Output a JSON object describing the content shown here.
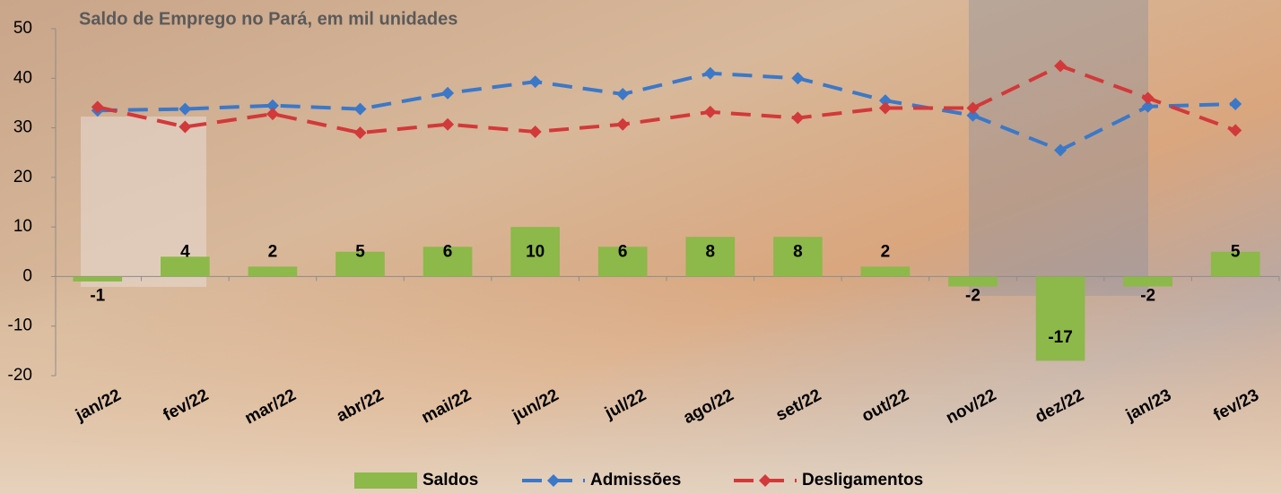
{
  "chart_data": {
    "type": "bar-line",
    "title": "Saldo de Emprego no Pará, em mil unidades",
    "categories": [
      "jan/22",
      "fev/22",
      "mar/22",
      "abr/22",
      "mai/22",
      "jun/22",
      "jul/22",
      "ago/22",
      "set/22",
      "out/22",
      "nov/22",
      "dez/22",
      "jan/23",
      "fev/23"
    ],
    "series": [
      {
        "name": "Saldos",
        "type": "bar",
        "color": "#8db84a",
        "values": [
          -1,
          4,
          2,
          5,
          6,
          10,
          6,
          8,
          8,
          2,
          -2,
          -17,
          -2,
          5
        ]
      },
      {
        "name": "Admissões",
        "type": "line",
        "color": "#3b78c8",
        "values": [
          33.5,
          33.8,
          34.5,
          33.8,
          37,
          39.3,
          36.8,
          41,
          40,
          35.5,
          32.5,
          25.5,
          34.3,
          34.8
        ]
      },
      {
        "name": "Desligamentos",
        "type": "line",
        "color": "#d2393a",
        "values": [
          34.2,
          30.2,
          32.8,
          29,
          30.7,
          29.2,
          30.7,
          33.2,
          32,
          34,
          34,
          42.5,
          36,
          29.5
        ]
      }
    ],
    "ylim": [
      -20,
      50
    ],
    "yticks": [
      -20,
      -10,
      0,
      10,
      20,
      30,
      40,
      50
    ],
    "legend": "bottom"
  }
}
